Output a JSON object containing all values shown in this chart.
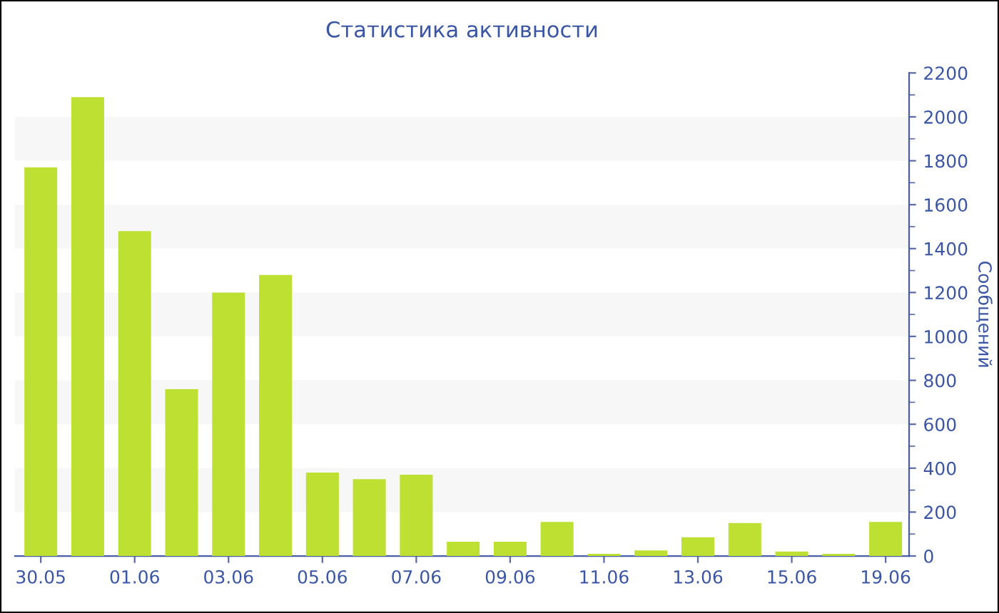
{
  "chart_data": {
    "type": "bar",
    "title": "Статистика активности",
    "ylabel": "Сообщений",
    "categories": [
      "30.05",
      null,
      "01.06",
      null,
      "03.06",
      null,
      "05.06",
      null,
      "07.06",
      null,
      "09.06",
      null,
      "11.06",
      null,
      "13.06",
      null,
      "15.06",
      null,
      "19.06"
    ],
    "values": [
      1770,
      2090,
      1480,
      760,
      1200,
      1280,
      380,
      350,
      370,
      65,
      65,
      155,
      10,
      25,
      85,
      150,
      20,
      10,
      155
    ],
    "color": "#bde033",
    "ylim": [
      0,
      2200
    ],
    "yticks": [
      0,
      200,
      400,
      600,
      800,
      1000,
      1200,
      1400,
      1600,
      1800,
      2000,
      2200
    ],
    "bands": [
      {
        "axis": "y",
        "from": 200,
        "to": 400,
        "color": "#f7f7f7"
      },
      {
        "axis": "y",
        "from": 600,
        "to": 800,
        "color": "#f7f7f7"
      },
      {
        "axis": "y",
        "from": 1000,
        "to": 1200,
        "color": "#f7f7f7"
      },
      {
        "axis": "y",
        "from": 1400,
        "to": 1600,
        "color": "#f7f7f7"
      },
      {
        "axis": "y",
        "from": 1800,
        "to": 2000,
        "color": "#f7f7f7"
      }
    ],
    "legend": false
  }
}
